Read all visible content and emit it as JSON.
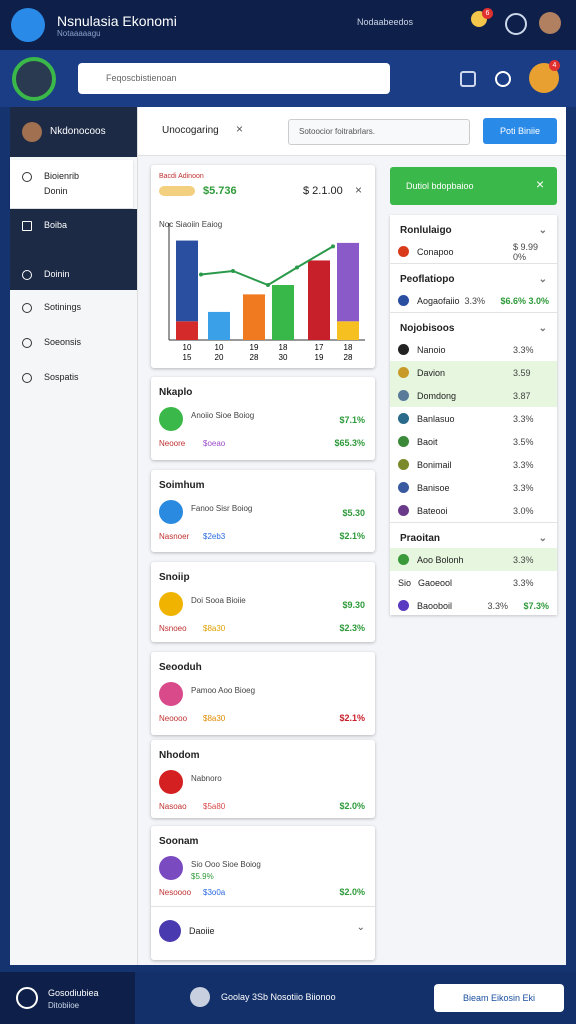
{
  "header": {
    "title": "Nsnulasia Ekonomi",
    "subtitle": "Notaaaaagu",
    "menu": "Nodaabeedos",
    "badge": "6"
  },
  "search": {
    "placeholder": "Feqoscbistienoan",
    "badge": "4"
  },
  "sidebar": {
    "title": "Nkdonocoos",
    "items": [
      {
        "label": "Bioienrib",
        "sub": "Donin"
      },
      {
        "label": "Boiba"
      },
      {
        "label": "Doinin"
      },
      {
        "label": "Sotinings"
      },
      {
        "label": "Soeonsis"
      },
      {
        "label": "Sospatis"
      }
    ]
  },
  "toolbar": {
    "tab": "Unocogaring",
    "filter": "Sotoocior foitrabrlars.",
    "button": "Poti Biniie"
  },
  "chart_card": {
    "title": "Bacdi Adinoon",
    "value": "$5.736",
    "total": "$ 2.1.00",
    "caption": "Noc Siaoiin Eaiog",
    "ylim": [
      0,
      100
    ],
    "bars": [
      {
        "segments": [
          {
            "color": "#d42a2a",
            "value": 16
          },
          {
            "color": "#2a4fa0",
            "value": 69
          }
        ]
      },
      {
        "segments": [
          {
            "color": "#3aa0e8",
            "value": 24
          }
        ]
      },
      {
        "segments": [
          {
            "color": "#f07a20",
            "value": 39
          }
        ]
      },
      {
        "segments": [
          {
            "color": "#38b848",
            "value": 47
          }
        ]
      },
      {
        "segments": [
          {
            "color": "#c8202a",
            "value": 68
          }
        ]
      },
      {
        "segments": [
          {
            "color": "#f5c020",
            "value": 16
          },
          {
            "color": "#8a5ac8",
            "value": 67
          }
        ]
      }
    ],
    "line": {
      "color": "#2a9a4a",
      "values": [
        56,
        59,
        47,
        62,
        80
      ]
    },
    "labels": [
      "10",
      "10",
      "19",
      "18",
      "17",
      "18"
    ],
    "labels2": [
      "15",
      "20",
      "28",
      "30",
      "19",
      "28"
    ]
  },
  "cards": [
    {
      "title": "Nkaplo",
      "color": "#3bb84a",
      "name": "Anoiio Sioe Boiog",
      "rate_top": "$7.1%",
      "tag": "Neoore",
      "code": "$oeao",
      "code_color": "#9b4dca",
      "rate": "$65.3%",
      "rate_color": "#2e9a3a"
    },
    {
      "title": "Soimhum",
      "color": "#2a8ae0",
      "name": "Fanoo Sisr Boiog",
      "rate_top": "$5.30",
      "tag": "Nasnoer",
      "code": "$2eb3",
      "code_color": "#2a6ae0",
      "rate": "$2.1%",
      "rate_color": "#2e9a3a"
    },
    {
      "title": "Snoiip",
      "color": "#f0b400",
      "name": "Doi Sooa Bioiie",
      "rate_top": "$9.30",
      "tag": "Nsnoeo",
      "code": "$8a30",
      "code_color": "#e0a000",
      "rate": "$2.3%",
      "rate_color": "#2e9a3a"
    },
    {
      "title": "Seooduh",
      "color": "#d84a8a",
      "name": "Pamoo Aoo Bioeg",
      "tag": "Neoooo",
      "code": "$8a30",
      "code_color": "#e08a00",
      "rate": "$2.1%",
      "rate_color": "#c8202a"
    },
    {
      "title": "Nhodom",
      "color": "#d42020",
      "name": "Nabnoro",
      "tag": "Nasoao",
      "code": "$5a80",
      "code_color": "#d84a4a",
      "rate": "$2.0%",
      "rate_color": "#2e9a3a"
    },
    {
      "title": "Soonam",
      "color": "#7a4ac0",
      "name": "Sio Ooo Sioe Boiog",
      "amount": "$5.9%",
      "tag": "Nesoooo",
      "code": "$3o0a",
      "code_color": "#2a6ae0",
      "rate": "$2.0%",
      "rate_color": "#2e9a3a",
      "footer": "Daoiie"
    }
  ],
  "side_panel": {
    "banner": "Dutiol bdopbaioo",
    "sections": [
      {
        "title": "Ronlulaigo",
        "rows": [
          {
            "label": "Conapoo",
            "value": "$ 9.99 0%",
            "icon": "#d83a1a"
          }
        ]
      },
      {
        "title": "Peoflatiopo",
        "rows": [
          {
            "label": "Aogaofaiio",
            "value": "3.3%",
            "value2": "$6.6% 3.0%",
            "icon": "#2a4fa0"
          }
        ]
      },
      {
        "title": "Nojobisoos",
        "rows": [
          {
            "label": "Nanoio",
            "value": "3.3%",
            "icon": "#222"
          },
          {
            "label": "Davion",
            "value": "3.59",
            "icon": "#c89a2a",
            "highlight": true
          },
          {
            "label": "Domdong",
            "value": "3.87",
            "icon": "#5a7a9a",
            "highlight": true
          },
          {
            "label": "Banlasuo",
            "value": "3.3%",
            "icon": "#2a6a8a"
          },
          {
            "label": "Baoit",
            "value": "3.5%",
            "icon": "#3a8a3a"
          },
          {
            "label": "Bonimail",
            "value": "3.3%",
            "icon": "#7a8a2a"
          },
          {
            "label": "Banisoe",
            "value": "3.3%",
            "icon": "#3a5aa0"
          },
          {
            "label": "Bateooi",
            "value": "3.0%",
            "icon": "#6a3a8a"
          }
        ]
      },
      {
        "title": "Praoitan",
        "rows": [
          {
            "label": "Aoo Bolonh",
            "value": "3.3%",
            "icon": "#3a9a3a",
            "highlight": true
          },
          {
            "label": "Gaoeool",
            "value": "3.3%",
            "prefix": "Sio"
          },
          {
            "label": "Baooboil",
            "value": "3.3%",
            "value2": "$7.3%",
            "icon": "#5a3ac0"
          }
        ]
      }
    ]
  },
  "footer": {
    "title": "Gosodiubiea",
    "sub": "Ditobiioe",
    "center": "Goolay 3Sb Nosotiio Biionoo",
    "button": "Bieam Eikosin Eki"
  }
}
